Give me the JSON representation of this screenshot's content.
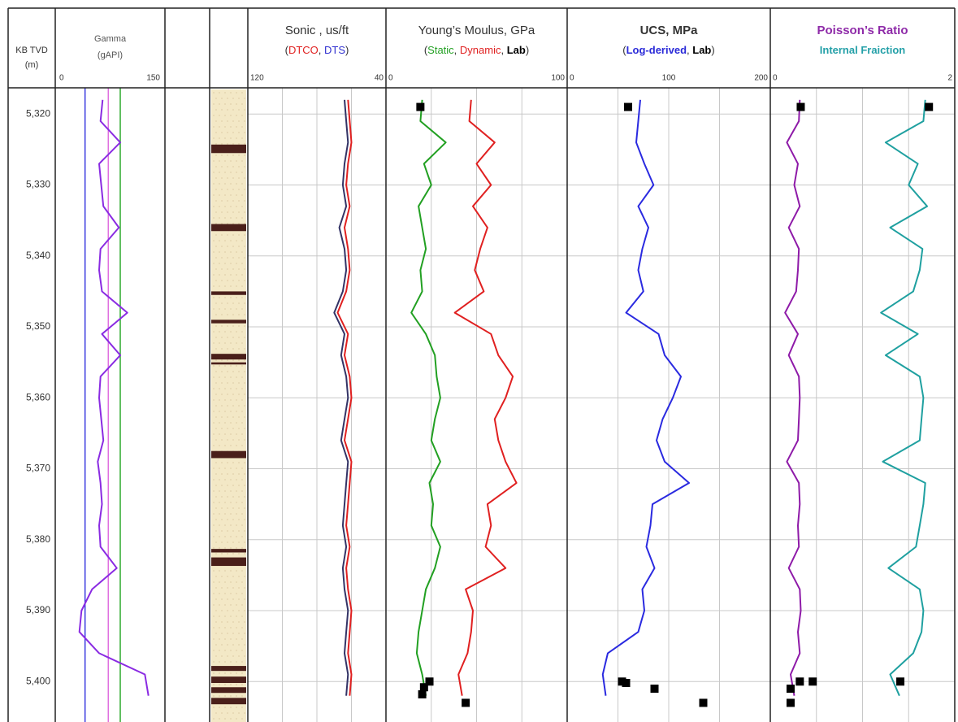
{
  "chart_data": [
    {
      "type": "depth",
      "title": "KB TVD",
      "subtitle": "(m)",
      "ylim": [
        5316.3,
        5405.7
      ],
      "yticks": [
        {
          "value": 5320,
          "label": "5,320"
        },
        {
          "value": 5330,
          "label": "5,330"
        },
        {
          "value": 5340,
          "label": "5,340"
        },
        {
          "value": 5350,
          "label": "5,350"
        },
        {
          "value": 5360,
          "label": "5,360"
        },
        {
          "value": 5370,
          "label": "5,370"
        },
        {
          "value": 5380,
          "label": "5,380"
        },
        {
          "value": 5390,
          "label": "5,390"
        },
        {
          "value": 5400,
          "label": "5,400"
        }
      ]
    },
    {
      "type": "line",
      "title": "Gamma",
      "subtitle": "(gAPI)",
      "xlim": [
        0,
        150
      ],
      "xticks": [
        0,
        150
      ],
      "grid": false,
      "reference_lines": [
        {
          "value": 40,
          "color": "#3a3adf"
        },
        {
          "value": 73,
          "color": "#e070e0"
        },
        {
          "value": 90,
          "color": "#2eaa2e"
        }
      ],
      "y": [
        5318,
        5321,
        5324,
        5327,
        5330,
        5333,
        5336,
        5339,
        5342,
        5345,
        5348,
        5351,
        5354,
        5357,
        5360,
        5363,
        5366,
        5369,
        5372,
        5375,
        5378,
        5381,
        5384,
        5387,
        5390,
        5393,
        5396,
        5399,
        5402
      ],
      "series": [
        {
          "color": "#8a2be2",
          "values": [
            65,
            62,
            90,
            60,
            63,
            66,
            88,
            62,
            60,
            64,
            100,
            64,
            90,
            62,
            60,
            63,
            66,
            58,
            62,
            64,
            60,
            62,
            85,
            50,
            35,
            32,
            60,
            125,
            130
          ]
        }
      ]
    },
    {
      "type": "lithology",
      "sand_color": "#f3e8c6",
      "shale_color": "#4a1f1a",
      "intervals": [
        [
          5324.3,
          5325.5
        ],
        [
          5335.5,
          5336.5
        ],
        [
          5345,
          5345.5
        ],
        [
          5349,
          5349.5
        ],
        [
          5353.8,
          5354.6
        ],
        [
          5355,
          5355.3
        ],
        [
          5367.5,
          5368.5
        ],
        [
          5381.3,
          5381.8
        ],
        [
          5382.5,
          5383.7
        ],
        [
          5397.8,
          5398.5
        ],
        [
          5399.3,
          5400.2
        ],
        [
          5400.8,
          5401.6
        ],
        [
          5402.3,
          5403.2
        ]
      ]
    },
    {
      "type": "line",
      "title": "Sonic , us/ft",
      "subtitle": [
        {
          "text": "(",
          "color": "#333333"
        },
        {
          "text": "DTCO",
          "color": "#e02020"
        },
        {
          "text": ", ",
          "color": "#333333"
        },
        {
          "text": "DTS",
          "color": "#3030d0"
        },
        {
          "text": ")",
          "color": "#333333"
        }
      ],
      "xlim": [
        120,
        40
      ],
      "xticks": [
        120,
        40
      ],
      "grid": true,
      "y": [
        5318,
        5321,
        5324,
        5327,
        5330,
        5333,
        5336,
        5339,
        5342,
        5345,
        5348,
        5351,
        5354,
        5357,
        5360,
        5363,
        5366,
        5369,
        5372,
        5375,
        5378,
        5381,
        5384,
        5387,
        5390,
        5393,
        5396,
        5399,
        5402
      ],
      "series": [
        {
          "color": "#333366",
          "values": [
            64,
            63,
            62,
            64,
            65,
            63,
            67,
            64,
            63,
            65,
            70,
            64,
            66,
            63,
            62,
            64,
            66,
            62,
            63,
            64,
            65,
            63,
            65,
            64,
            62,
            63,
            64,
            62,
            63
          ]
        },
        {
          "color": "#e02020",
          "values": [
            62,
            61,
            60,
            62,
            63,
            61,
            64,
            62,
            61,
            63,
            68,
            62,
            64,
            61,
            60,
            62,
            64,
            60,
            61,
            62,
            63,
            61,
            63,
            62,
            60,
            61,
            62,
            60,
            61
          ]
        }
      ]
    },
    {
      "type": "line",
      "title": "Young’s Moulus, GPa",
      "subtitle": [
        {
          "text": "(",
          "color": "#333333"
        },
        {
          "text": "Static",
          "color": "#22a022"
        },
        {
          "text": ", ",
          "color": "#333333"
        },
        {
          "text": "Dynamic",
          "color": "#e02020"
        },
        {
          "text": ", ",
          "color": "#333333"
        },
        {
          "text": "Lab",
          "color": "#000000",
          "bold": true
        },
        {
          "text": ")",
          "color": "#333333"
        }
      ],
      "xlim": [
        0,
        100
      ],
      "xticks": [
        0,
        100
      ],
      "grid": true,
      "y": [
        5318,
        5321,
        5324,
        5327,
        5330,
        5333,
        5336,
        5339,
        5342,
        5345,
        5348,
        5351,
        5354,
        5357,
        5360,
        5363,
        5366,
        5369,
        5372,
        5375,
        5378,
        5381,
        5384,
        5387,
        5390,
        5393,
        5396,
        5399,
        5402
      ],
      "series": [
        {
          "color": "#22a022",
          "values": [
            20,
            19,
            33,
            21,
            25,
            18,
            20,
            22,
            19,
            20,
            14,
            22,
            27,
            28,
            30,
            27,
            25,
            30,
            24,
            26,
            25,
            30,
            27,
            22,
            20,
            18,
            17,
            20,
            22
          ]
        },
        {
          "color": "#e02020",
          "values": [
            47,
            46,
            60,
            50,
            58,
            48,
            56,
            52,
            49,
            54,
            38,
            58,
            62,
            70,
            66,
            60,
            62,
            66,
            72,
            56,
            58,
            55,
            66,
            44,
            48,
            47,
            45,
            40,
            42
          ]
        },
        {
          "color": "#000000",
          "marker": "square",
          "y": [
            5319,
            5400,
            5400.8,
            5401.8,
            5403
          ],
          "values": [
            19,
            24,
            21,
            20,
            44
          ]
        }
      ]
    },
    {
      "type": "line",
      "title": "UCS, MPa",
      "title_bold": true,
      "subtitle": [
        {
          "text": "(",
          "color": "#333333"
        },
        {
          "text": "Log-derived",
          "color": "#2a2ad8",
          "bold": true
        },
        {
          "text": ", ",
          "color": "#333333"
        },
        {
          "text": "Lab",
          "color": "#000000",
          "bold": true
        },
        {
          "text": ")",
          "color": "#333333"
        }
      ],
      "xlim": [
        0,
        200
      ],
      "xticks": [
        0,
        100,
        200
      ],
      "grid": true,
      "y": [
        5318,
        5321,
        5324,
        5327,
        5330,
        5333,
        5336,
        5339,
        5342,
        5345,
        5348,
        5351,
        5354,
        5357,
        5360,
        5363,
        5366,
        5369,
        5372,
        5375,
        5378,
        5381,
        5384,
        5387,
        5390,
        5393,
        5396,
        5399,
        5402
      ],
      "series": [
        {
          "color": "#2a2ae0",
          "values": [
            72,
            70,
            68,
            76,
            85,
            70,
            80,
            74,
            70,
            75,
            58,
            90,
            96,
            112,
            104,
            94,
            88,
            96,
            120,
            84,
            82,
            78,
            86,
            74,
            76,
            70,
            40,
            35,
            38
          ]
        },
        {
          "color": "#000000",
          "marker": "square",
          "y": [
            5319,
            5400,
            5400.2,
            5401,
            5403
          ],
          "values": [
            60,
            54,
            58,
            86,
            134
          ]
        }
      ]
    },
    {
      "type": "line",
      "title": "Poisson’s Ratio",
      "title_bold": true,
      "title_color": "#8e2aa8",
      "subtitle": [
        {
          "text": "Internal Fraiction",
          "color": "#24a0a8",
          "bold": true
        }
      ],
      "xlim": [
        0,
        2
      ],
      "xticks": [
        0,
        2
      ],
      "grid": true,
      "y": [
        5318,
        5321,
        5324,
        5327,
        5330,
        5333,
        5336,
        5339,
        5342,
        5345,
        5348,
        5351,
        5354,
        5357,
        5360,
        5363,
        5366,
        5369,
        5372,
        5375,
        5378,
        5381,
        5384,
        5387,
        5390,
        5393,
        5396,
        5399,
        5402
      ],
      "series": [
        {
          "color": "#8e1aa8",
          "values": [
            0.32,
            0.31,
            0.18,
            0.3,
            0.26,
            0.32,
            0.2,
            0.31,
            0.3,
            0.28,
            0.16,
            0.3,
            0.2,
            0.31,
            0.32,
            0.31,
            0.3,
            0.18,
            0.31,
            0.32,
            0.3,
            0.31,
            0.2,
            0.32,
            0.33,
            0.3,
            0.32,
            0.22,
            0.26
          ]
        },
        {
          "color": "#1fa0a0",
          "values": [
            1.68,
            1.66,
            1.25,
            1.6,
            1.5,
            1.7,
            1.3,
            1.65,
            1.62,
            1.55,
            1.2,
            1.6,
            1.25,
            1.62,
            1.66,
            1.64,
            1.62,
            1.22,
            1.68,
            1.66,
            1.62,
            1.58,
            1.28,
            1.62,
            1.66,
            1.64,
            1.55,
            1.3,
            1.4
          ]
        },
        {
          "color": "#000000",
          "marker": "square",
          "y": [
            5319,
            5400,
            5400,
            5401,
            5403
          ],
          "values": [
            0.33,
            0.32,
            0.46,
            0.22,
            0.22
          ]
        },
        {
          "color": "#000000",
          "marker": "square",
          "y": [
            5319,
            5400
          ],
          "values": [
            1.72,
            1.41
          ]
        }
      ]
    }
  ]
}
